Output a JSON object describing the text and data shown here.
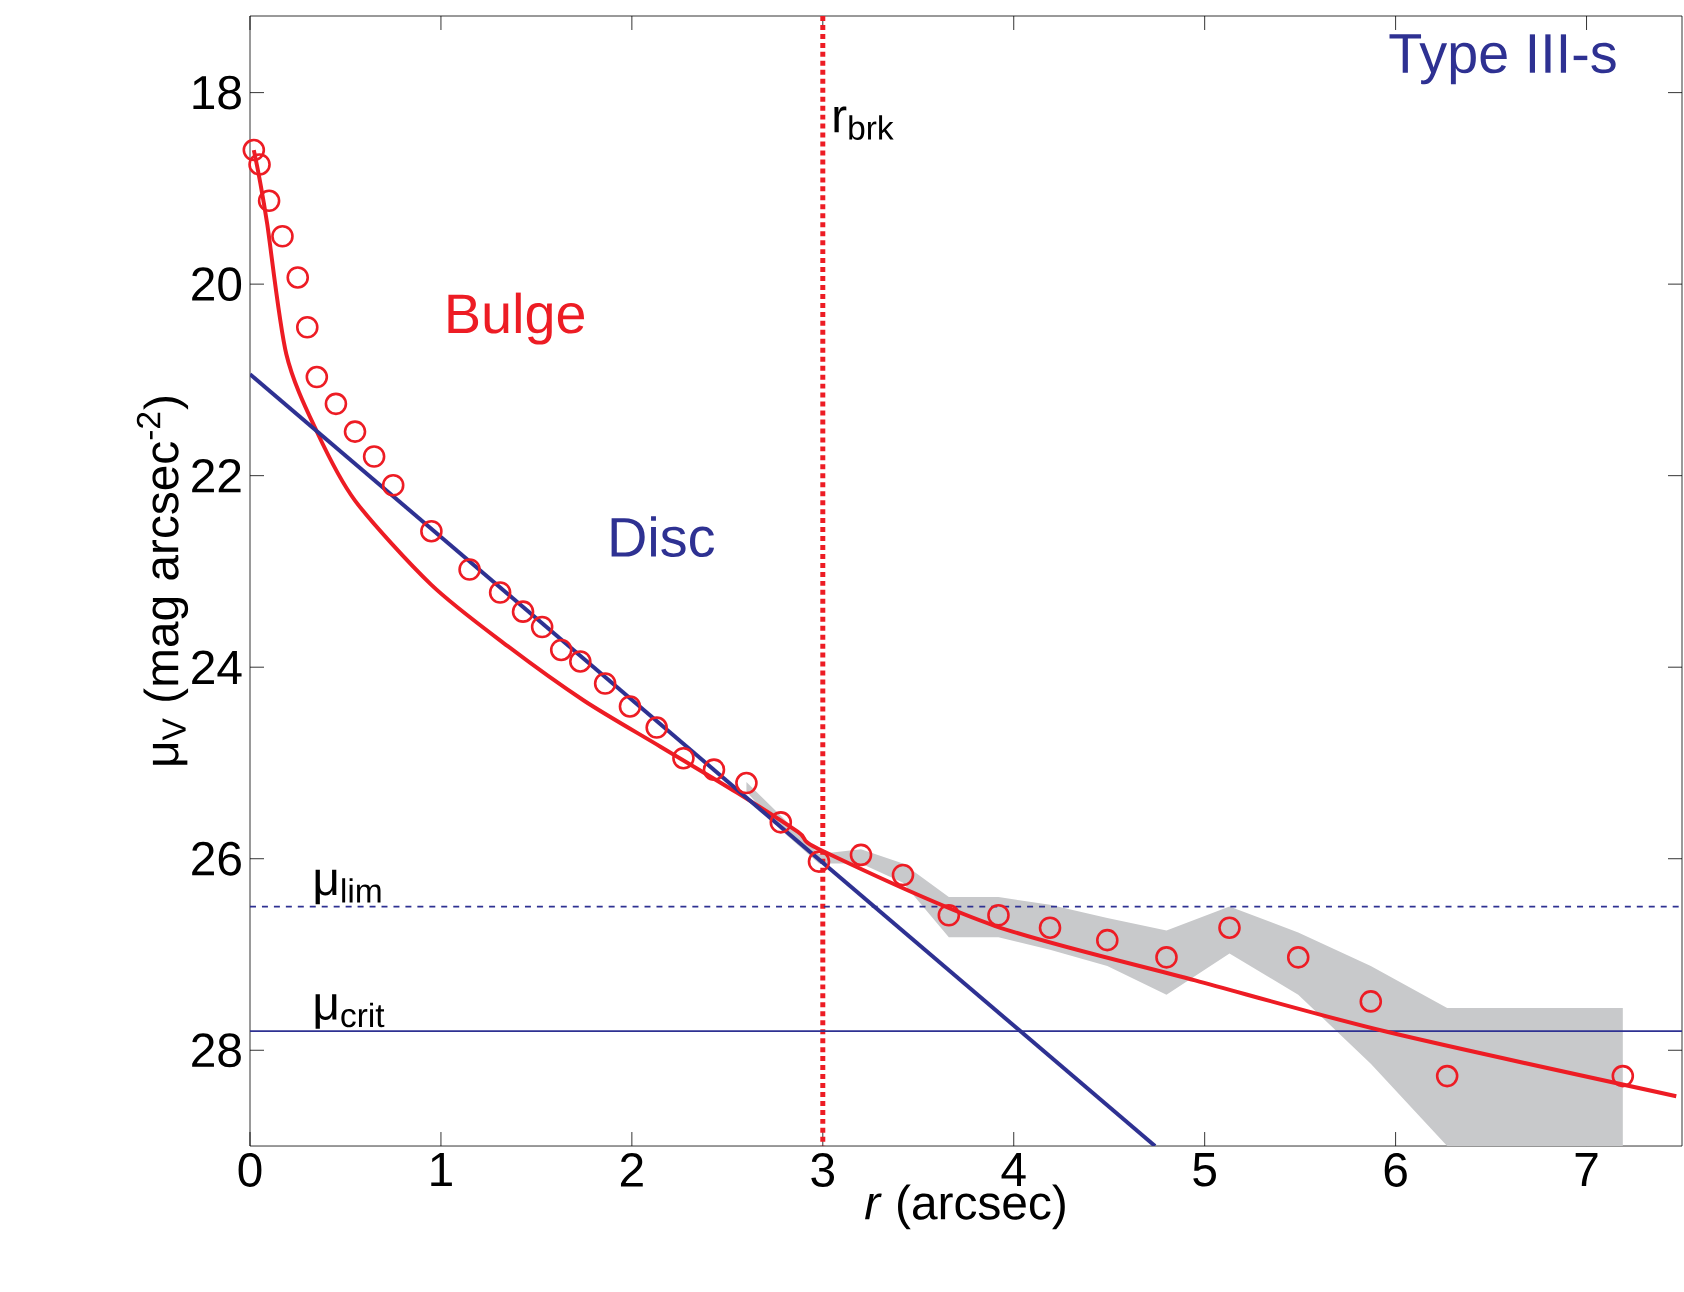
{
  "chart_data": {
    "type": "scatter",
    "xlabel": "*r* (arcsec)",
    "ylabel": "μ$_{V}$ (mag arcsec$^{-2}$)",
    "xlim": [
      0,
      7.5
    ],
    "ylim": [
      29,
      17.2
    ],
    "xticks": [
      0,
      1,
      2,
      3,
      4,
      5,
      6,
      7
    ],
    "yticks": [
      18,
      20,
      22,
      24,
      26,
      28
    ],
    "marker": "circle",
    "annotations": [
      "Type III-s"
    ],
    "ref_lines": [
      {
        "axis": "x",
        "value": 3,
        "label": "r$_{brk}$",
        "color": "#ed1c24",
        "line_style": "dotted"
      },
      {
        "axis": "y",
        "value": 26.5,
        "label": "μ$_{lim}$",
        "color": "#2e3192",
        "line_style": "dashed"
      },
      {
        "axis": "y",
        "value": 27.8,
        "label": "μ$_{crit}$",
        "color": "#2e3192",
        "line_style": "solid"
      }
    ],
    "series": [
      {
        "color": "#ed1c24",
        "x": [
          0.02,
          0.05,
          0.1,
          0.17,
          0.25,
          0.3,
          0.35,
          0.45,
          0.55,
          0.65,
          0.75,
          0.95,
          1.15,
          1.31,
          1.43,
          1.53,
          1.63,
          1.73,
          1.86,
          1.99,
          2.13,
          2.27,
          2.43,
          2.6,
          2.78,
          2.98,
          3.2,
          3.42,
          3.66,
          3.92,
          4.19,
          4.49,
          4.8,
          5.13,
          5.49,
          5.87,
          6.27,
          7.19
        ],
        "values": [
          18.6,
          18.75,
          19.13,
          19.5,
          19.93,
          20.45,
          20.97,
          21.25,
          21.54,
          21.8,
          22.1,
          22.58,
          22.98,
          23.22,
          23.42,
          23.58,
          23.82,
          23.94,
          24.17,
          24.41,
          24.63,
          24.95,
          25.07,
          25.21,
          25.62,
          26.03,
          25.96,
          26.17,
          26.59,
          26.59,
          26.72,
          26.85,
          27.03,
          26.72,
          27.03,
          27.49,
          28.27,
          28.27
        ],
        "lower": [
          null,
          null,
          null,
          null,
          null,
          null,
          null,
          null,
          null,
          null,
          null,
          null,
          null,
          null,
          null,
          null,
          null,
          null,
          null,
          null,
          null,
          null,
          null,
          25.3,
          25.7,
          26.05,
          26.05,
          26.25,
          26.82,
          26.82,
          26.95,
          27.12,
          27.42,
          26.99,
          27.42,
          28.14,
          29,
          29
        ],
        "upper": [
          null,
          null,
          null,
          null,
          null,
          null,
          null,
          null,
          null,
          null,
          null,
          null,
          null,
          null,
          null,
          null,
          null,
          null,
          null,
          null,
          null,
          null,
          null,
          25.2,
          25.55,
          25.95,
          25.9,
          26.05,
          26.4,
          26.4,
          26.48,
          26.62,
          26.75,
          26.5,
          26.77,
          27.12,
          27.56,
          27.56
        ]
      },
      {
        "type": "line",
        "name": "Bulge",
        "color": "#ed1c24",
        "marker": "none",
        "x": [
          0.02,
          0.05,
          0.09,
          0.19,
          0.35,
          0.55,
          0.95,
          1.35,
          1.75,
          2.15,
          2.55,
          2.87,
          3.0,
          3.9,
          4.95,
          5.96,
          7.47
        ],
        "values": [
          18.6,
          18.9,
          19.37,
          20.73,
          21.54,
          22.26,
          23.14,
          23.78,
          24.35,
          24.83,
          25.31,
          25.72,
          25.92,
          26.7,
          27.27,
          27.81,
          28.48
        ]
      },
      {
        "type": "line",
        "name": "Disc",
        "color": "#2e3192",
        "marker": "none",
        "x": [
          0,
          4.74
        ],
        "values": [
          20.94,
          29.0
        ]
      }
    ]
  }
}
